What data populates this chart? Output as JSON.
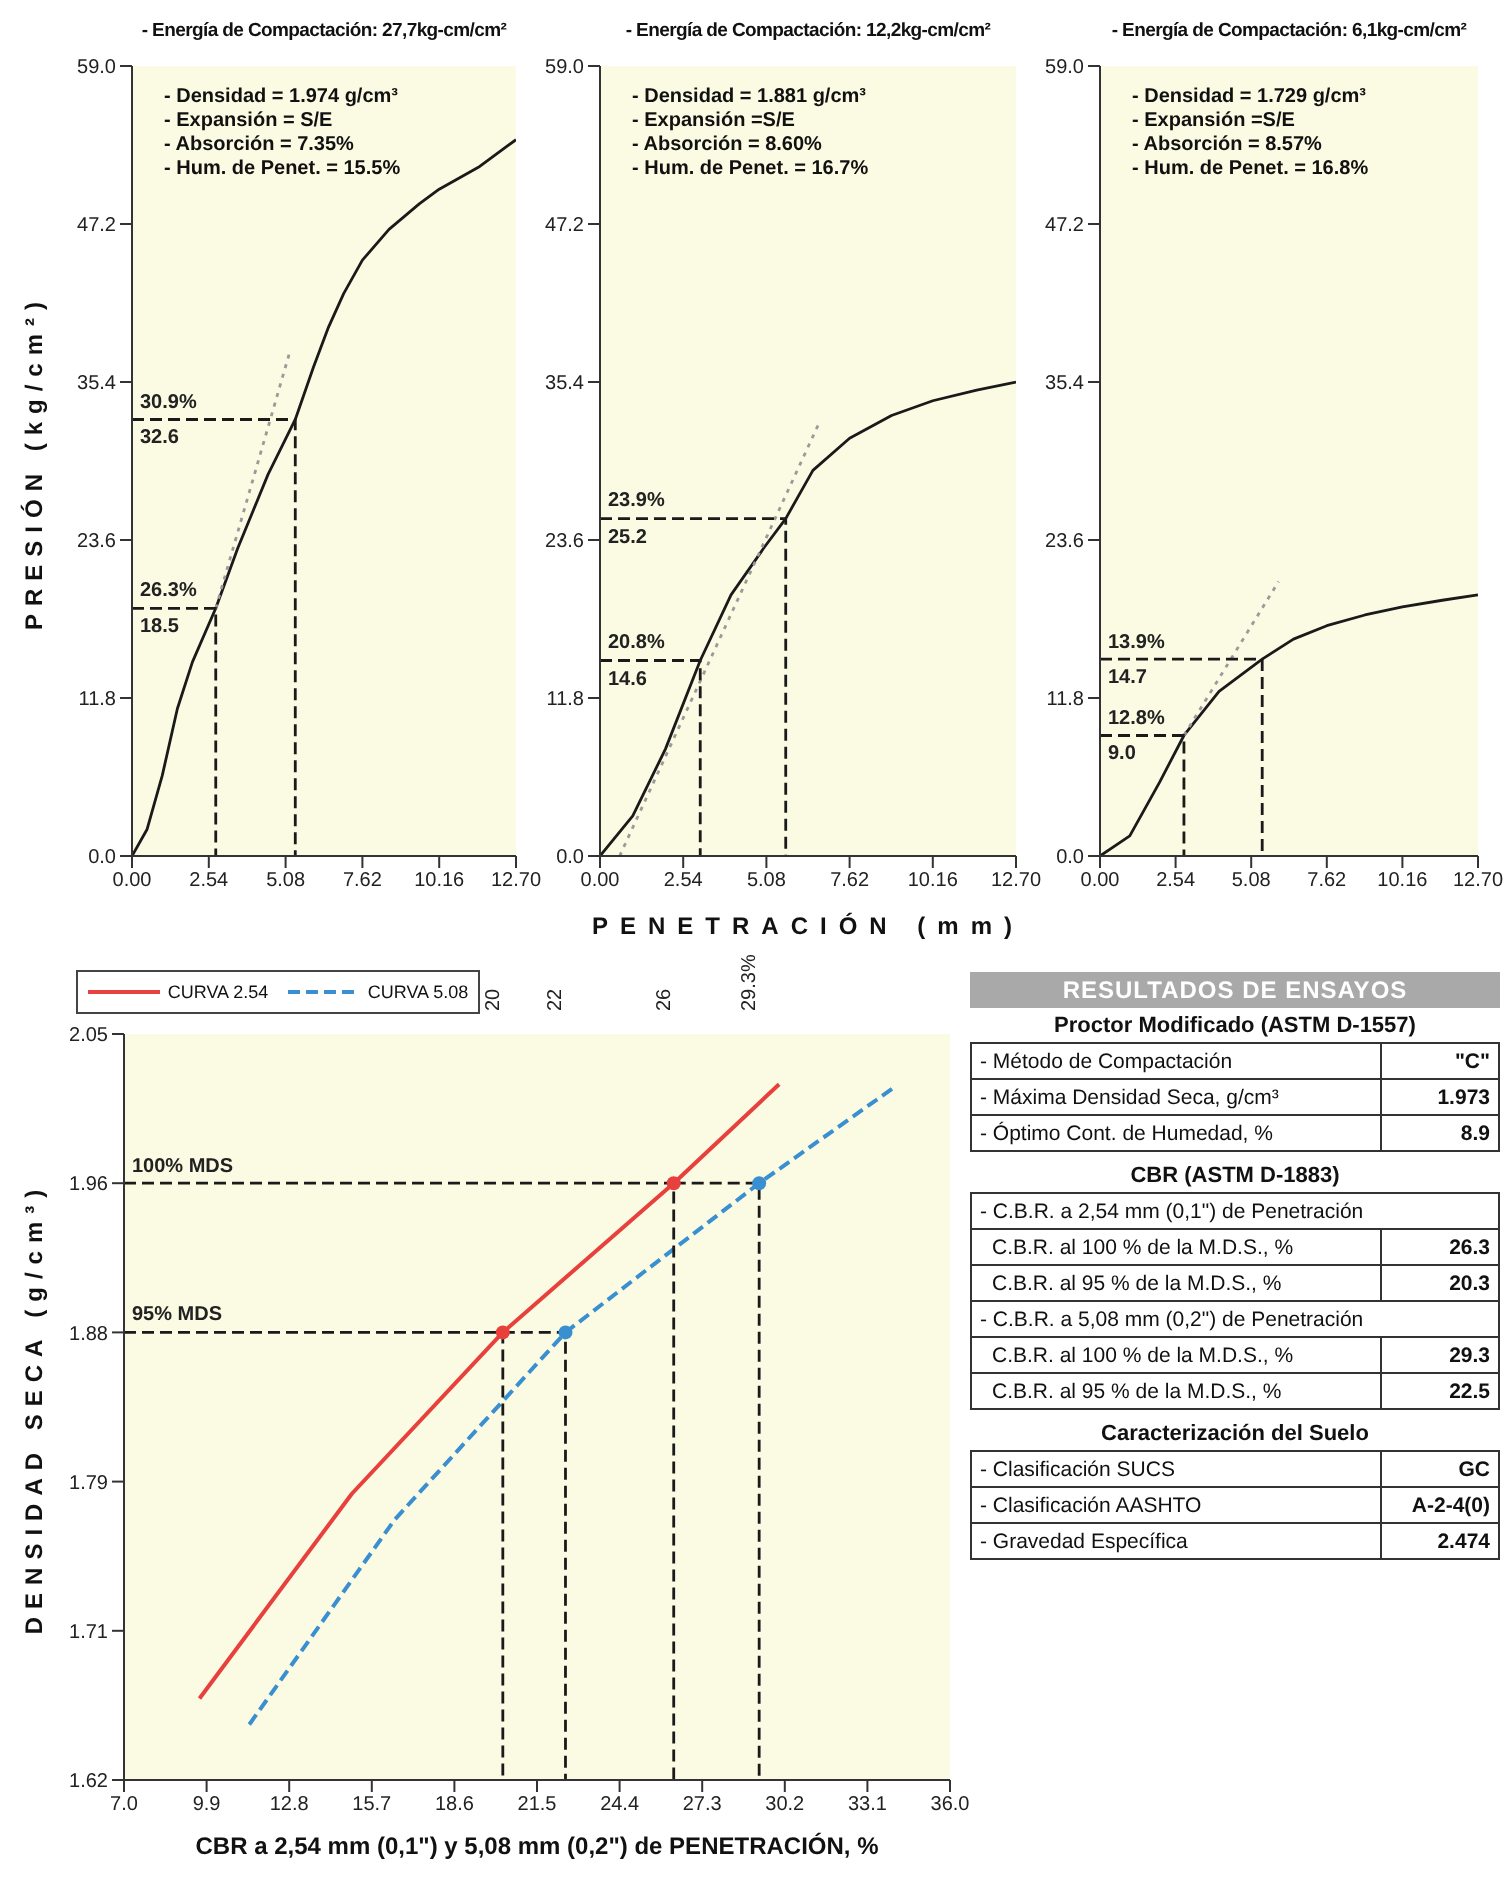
{
  "chart_data": [
    {
      "type": "line",
      "title": "- Energía de Compactación: 27,7kg-cm/cm²",
      "ylabel": "PRESIÓN (kg/cm²)",
      "xlim": [
        0,
        12.7
      ],
      "xticks": [
        {
          "value": 0,
          "label": "0.00"
        },
        2.54,
        5.08,
        7.62,
        10.16,
        {
          "value": 12.7,
          "label": "12.70"
        }
      ],
      "ylim": [
        0,
        59
      ],
      "yticks": [
        {
          "value": 0,
          "label": "0.0"
        },
        11.8,
        23.6,
        35.4,
        47.2,
        {
          "value": 59,
          "label": "59.0"
        }
      ],
      "annotations": [
        "- Densidad = 1.974 g/cm³",
        "- Expansión = S/E",
        "- Absorción = 7.35%",
        "- Hum. de Penet. = 15.5%",
        {
          "text": "26.3%",
          "y": 18.5
        },
        {
          "text": "30.9%",
          "y": 32.6
        }
      ],
      "series": [
        {
          "color": "#1a1a1a",
          "x": [
            0,
            0.5,
            1,
            1.5,
            2,
            2.77,
            3.5,
            4.5,
            5.4,
            6,
            6.5,
            7,
            7.62,
            8.5,
            9.5,
            10.16,
            11.5,
            12.7
          ],
          "values": [
            0,
            2,
            6,
            11,
            14.5,
            18.5,
            23,
            28.5,
            32.6,
            36.5,
            39.5,
            42,
            44.5,
            46.8,
            48.7,
            49.8,
            51.5,
            53.5
          ]
        },
        {
          "color": "#9a9a9a",
          "line_style": "dotted",
          "x": [
            2.77,
            5.2
          ],
          "values": [
            18.5,
            37.5
          ]
        },
        {
          "color": "#1a1a1a",
          "line_style": "dashed",
          "x": [
            0,
            2.77,
            2.77
          ],
          "values": [
            18.5,
            18.5,
            0
          ],
          "value_labels": [
            "18.5",
            null,
            null
          ]
        },
        {
          "color": "#1a1a1a",
          "line_style": "dashed",
          "x": [
            0,
            5.4,
            5.4
          ],
          "values": [
            32.6,
            32.6,
            0
          ],
          "value_labels": [
            "32.6",
            null,
            null
          ]
        }
      ]
    },
    {
      "type": "line",
      "title": "- Energía de Compactación: 12,2kg-cm/cm²",
      "xlabel": "PENETRACIÓN (mm)",
      "xlim": [
        0,
        12.7
      ],
      "xticks": [
        {
          "value": 0,
          "label": "0.00"
        },
        2.54,
        5.08,
        7.62,
        10.16,
        {
          "value": 12.7,
          "label": "12.70"
        }
      ],
      "ylim": [
        0,
        59
      ],
      "yticks": [
        {
          "value": 0,
          "label": "0.0"
        },
        11.8,
        23.6,
        35.4,
        47.2,
        {
          "value": 59,
          "label": "59.0"
        }
      ],
      "annotations": [
        "- Densidad = 1.881 g/cm³",
        "- Expansión =S/E",
        "- Absorción = 8.60%",
        "- Hum. de Penet. = 16.7%",
        {
          "text": "20.8%",
          "y": 14.6
        },
        {
          "text": "23.9%",
          "y": 25.2
        }
      ],
      "series": [
        {
          "color": "#1a1a1a",
          "x": [
            0,
            1,
            2,
            3.06,
            4,
            5,
            5.67,
            6.5,
            7.62,
            8.9,
            10.16,
            11.5,
            12.7
          ],
          "values": [
            0,
            3,
            8,
            14.6,
            19.5,
            23,
            25.2,
            28.8,
            31.2,
            32.9,
            34,
            34.8,
            35.4
          ]
        },
        {
          "color": "#9a9a9a",
          "line_style": "dotted",
          "x": [
            0.6,
            6.7
          ],
          "values": [
            0,
            32.4
          ]
        },
        {
          "color": "#1a1a1a",
          "line_style": "dashed",
          "x": [
            0,
            3.06,
            3.06
          ],
          "values": [
            14.6,
            14.6,
            0
          ],
          "value_labels": [
            "14.6",
            null,
            null
          ]
        },
        {
          "color": "#1a1a1a",
          "line_style": "dashed",
          "x": [
            0,
            5.67,
            5.67
          ],
          "values": [
            25.2,
            25.2,
            0
          ],
          "value_labels": [
            "25.2",
            null,
            null
          ]
        }
      ]
    },
    {
      "type": "line",
      "title": "- Energía de Compactación: 6,1kg-cm/cm²",
      "xlim": [
        0,
        12.7
      ],
      "xticks": [
        {
          "value": 0,
          "label": "0.00"
        },
        2.54,
        5.08,
        7.62,
        10.16,
        {
          "value": 12.7,
          "label": "12.70"
        }
      ],
      "ylim": [
        0,
        59
      ],
      "yticks": [
        {
          "value": 0,
          "label": "0.0"
        },
        11.8,
        23.6,
        35.4,
        47.2,
        {
          "value": 59,
          "label": "59.0"
        }
      ],
      "annotations": [
        "- Densidad = 1.729 g/cm³",
        "- Expansión =S/E",
        "- Absorción = 8.57%",
        "- Hum. de Penet. = 16.8%",
        {
          "text": "12.8%",
          "y": 9.0
        },
        {
          "text": "13.9%",
          "y": 14.7
        }
      ],
      "series": [
        {
          "color": "#1a1a1a",
          "x": [
            0,
            1,
            2,
            2.82,
            4,
            5.45,
            6.5,
            7.62,
            8.9,
            10.16,
            11.5,
            12.7
          ],
          "values": [
            0,
            1.5,
            5.5,
            9.0,
            12.3,
            14.7,
            16.2,
            17.2,
            18,
            18.6,
            19.1,
            19.5
          ]
        },
        {
          "color": "#9a9a9a",
          "line_style": "dotted",
          "x": [
            2.82,
            6.0
          ],
          "values": [
            9.0,
            20.5
          ]
        },
        {
          "color": "#1a1a1a",
          "line_style": "dashed",
          "x": [
            0,
            2.82,
            2.82
          ],
          "values": [
            9.0,
            9.0,
            0
          ],
          "value_labels": [
            "9.0",
            null,
            null
          ]
        },
        {
          "color": "#1a1a1a",
          "line_style": "dashed",
          "x": [
            0,
            5.45,
            5.45
          ],
          "values": [
            14.7,
            14.7,
            0
          ],
          "value_labels": [
            "14.7",
            null,
            null
          ]
        }
      ]
    },
    {
      "type": "line",
      "xlabel": "CBR a 2,54 mm (0,1\") y 5,08 mm (0,2\") de PENETRACIÓN, %",
      "ylabel": "DENSIDAD SECA (g/cm³)",
      "legend": "top",
      "xlim": [
        7,
        36
      ],
      "xticks": [
        {
          "value": 7,
          "label": "7.0"
        },
        9.9,
        12.8,
        15.7,
        18.6,
        21.5,
        24.4,
        27.3,
        30.2,
        33.1,
        {
          "value": 36,
          "label": "36.0"
        }
      ],
      "ylim": [
        1.62,
        2.05
      ],
      "yticks": [
        1.62,
        {
          "value": 1.706,
          "label": "1.71"
        },
        {
          "value": 1.792,
          "label": "1.79"
        },
        {
          "value": 1.878,
          "label": "1.88"
        },
        {
          "value": 1.964,
          "label": "1.96"
        },
        2.05
      ],
      "x2lim": [
        7,
        36
      ],
      "x2ticks": [
        {
          "value": 20.3,
          "label": "20"
        },
        {
          "value": 22.5,
          "label": "22"
        },
        {
          "value": 26.3,
          "label": "26"
        },
        {
          "value": 29.3,
          "label": "29.3%"
        }
      ],
      "annotations": [
        {
          "text": "100% MDS",
          "y": 1.964
        },
        {
          "text": "95% MDS",
          "y": 1.878
        }
      ],
      "series": [
        {
          "name": "CURVA 2.54",
          "color": "#e8403c",
          "x": [
            9.65,
            15,
            20.3,
            26.3,
            30
          ],
          "values": [
            1.667,
            1.785,
            1.878,
            1.964,
            2.021
          ]
        },
        {
          "name": "CURVA 5.08",
          "color": "#3a8fd0",
          "line_style": "dashed",
          "x": [
            11.4,
            16.5,
            22.5,
            29.3,
            34.1
          ],
          "values": [
            1.652,
            1.77,
            1.878,
            1.964,
            2.02
          ]
        },
        {
          "type": "scatter",
          "marker": "circle",
          "color": "#e8403c",
          "x": [
            20.3,
            26.3
          ],
          "values": [
            1.878,
            1.964
          ]
        },
        {
          "type": "scatter",
          "marker": "circle",
          "color": "#3a8fd0",
          "x": [
            22.5,
            29.3
          ],
          "values": [
            1.878,
            1.964
          ]
        },
        {
          "color": "#1a1a1a",
          "line_style": "dashed",
          "x": [
            7,
            26.3,
            26.3
          ],
          "values": [
            1.964,
            1.964,
            1.62
          ]
        },
        {
          "color": "#1a1a1a",
          "line_style": "dashed",
          "x": [
            26.3,
            29.3,
            29.3
          ],
          "values": [
            1.964,
            1.964,
            1.62
          ]
        },
        {
          "color": "#1a1a1a",
          "line_style": "dashed",
          "x": [
            7,
            20.3,
            20.3
          ],
          "values": [
            1.878,
            1.878,
            1.62
          ]
        },
        {
          "color": "#1a1a1a",
          "line_style": "dashed",
          "x": [
            20.3,
            22.5,
            22.5
          ],
          "values": [
            1.878,
            1.878,
            1.62
          ]
        }
      ]
    },
    {
      "type": "other",
      "title": "RESULTADOS DE ENSAYOS",
      "subtitle": "Proctor Modificado (ASTM D-1557)",
      "categories": [
        "- Método de Compactación",
        "- Máxima Densidad Seca, g/cm³",
        "- Óptimo Cont. de Humedad, %"
      ],
      "value_labels": [
        "\"C\"",
        "1.973",
        "8.9"
      ]
    },
    {
      "type": "other",
      "subtitle": "CBR (ASTM D-1883)",
      "categories": [
        "- C.B.R. a 2,54 mm (0,1\") de Penetración",
        "C.B.R. al 100 % de la M.D.S., %",
        "C.B.R. al 95 % de la M.D.S., %",
        "- C.B.R. a 5,08 mm (0,2\") de Penetración",
        "C.B.R. al 100 % de la M.D.S., %",
        "C.B.R. al 95 % de la M.D.S., %"
      ],
      "value_labels": [
        null,
        "26.3",
        "20.3",
        null,
        "29.3",
        "22.5"
      ]
    },
    {
      "type": "other",
      "subtitle": "Caracterización del Suelo",
      "categories": [
        "- Clasificación SUCS",
        "- Clasificación AASHTO",
        "- Gravedad Específica"
      ],
      "value_labels": [
        "GC",
        "A-2-4(0)",
        "2.474"
      ]
    }
  ]
}
